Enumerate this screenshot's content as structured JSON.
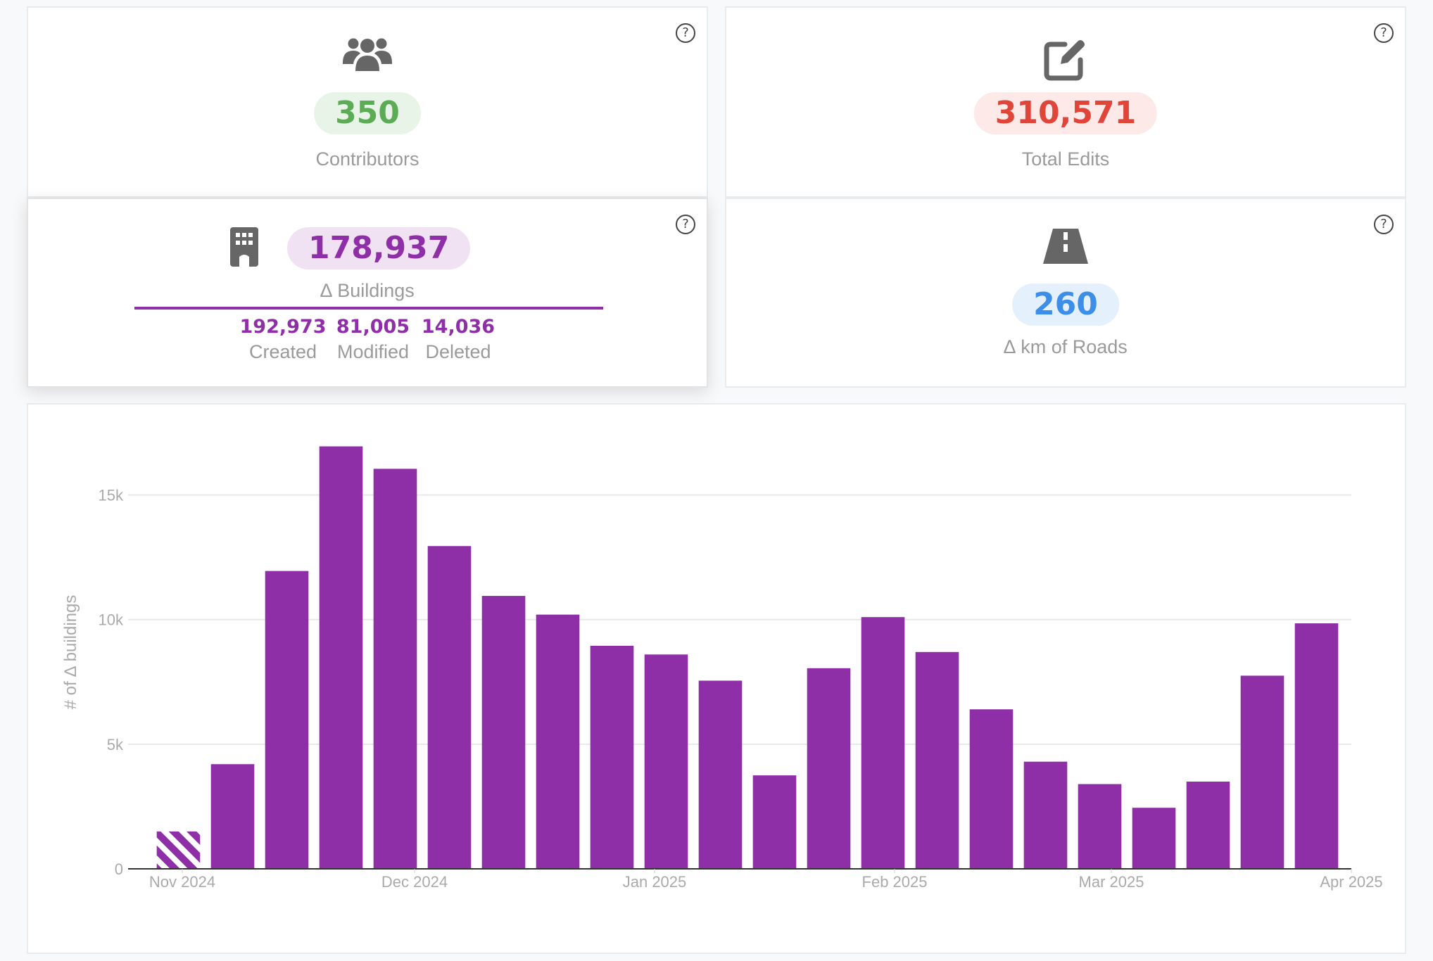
{
  "colors": {
    "green": "#5cac56",
    "green_bg": "#e7f4e7",
    "red": "#e0453a",
    "red_bg": "#fce9e8",
    "purple": "#8e2fa7",
    "purple_bg": "#f0e2f3",
    "blue": "#3d8ee8",
    "blue_bg": "#e4f0fc",
    "icon_gray": "#666666"
  },
  "cards": {
    "contributors": {
      "icon": "users-icon",
      "value": "350",
      "label": "Contributors",
      "help": "?"
    },
    "total_edits": {
      "icon": "edit-icon",
      "value": "310,571",
      "label": "Total Edits",
      "help": "?"
    },
    "buildings": {
      "icon": "building-icon",
      "value": "178,937",
      "label": "∆ Buildings",
      "help": "?",
      "created_value": "192,973",
      "created_label": "Created",
      "modified_value": "81,005",
      "modified_label": "Modified",
      "deleted_value": "14,036",
      "deleted_label": "Deleted"
    },
    "roads": {
      "icon": "road-icon",
      "value": "260",
      "label": "∆ km of Roads",
      "help": "?"
    }
  },
  "chart_data": {
    "type": "bar",
    "ylabel": "# of ∆ buildings",
    "ylim": [
      0,
      17500
    ],
    "yticks": [
      {
        "v": 0,
        "label": "0"
      },
      {
        "v": 5000,
        "label": "5k"
      },
      {
        "v": 10000,
        "label": "10k"
      },
      {
        "v": 15000,
        "label": "15k"
      }
    ],
    "xticks": [
      {
        "date": "2024-11-01",
        "label": "Nov 2024"
      },
      {
        "date": "2024-12-01",
        "label": "Dec 2024"
      },
      {
        "date": "2025-01-01",
        "label": "Jan 2025"
      },
      {
        "date": "2025-02-01",
        "label": "Feb 2025"
      },
      {
        "date": "2025-03-01",
        "label": "Mar 2025"
      },
      {
        "date": "2025-04-01",
        "label": "Apr 2025"
      }
    ],
    "x_range": [
      "2024-10-25",
      "2025-04-01"
    ],
    "bar_color": "#8e2fa7",
    "bars": [
      {
        "week": "2024-10-28",
        "value": 1500,
        "partial": true
      },
      {
        "week": "2024-11-04",
        "value": 4200
      },
      {
        "week": "2024-11-11",
        "value": 11950
      },
      {
        "week": "2024-11-18",
        "value": 16950
      },
      {
        "week": "2024-11-25",
        "value": 16050
      },
      {
        "week": "2024-12-02",
        "value": 12950
      },
      {
        "week": "2024-12-09",
        "value": 10950
      },
      {
        "week": "2024-12-16",
        "value": 10200
      },
      {
        "week": "2024-12-23",
        "value": 8950
      },
      {
        "week": "2024-12-30",
        "value": 8600
      },
      {
        "week": "2025-01-06",
        "value": 7550
      },
      {
        "week": "2025-01-13",
        "value": 3750
      },
      {
        "week": "2025-01-20",
        "value": 8050
      },
      {
        "week": "2025-01-27",
        "value": 10100
      },
      {
        "week": "2025-02-03",
        "value": 8700
      },
      {
        "week": "2025-02-10",
        "value": 6400
      },
      {
        "week": "2025-02-17",
        "value": 4300
      },
      {
        "week": "2025-02-24",
        "value": 3400
      },
      {
        "week": "2025-03-03",
        "value": 2450
      },
      {
        "week": "2025-03-10",
        "value": 3500
      },
      {
        "week": "2025-03-17",
        "value": 7750
      },
      {
        "week": "2025-03-24",
        "value": 9850
      }
    ]
  }
}
